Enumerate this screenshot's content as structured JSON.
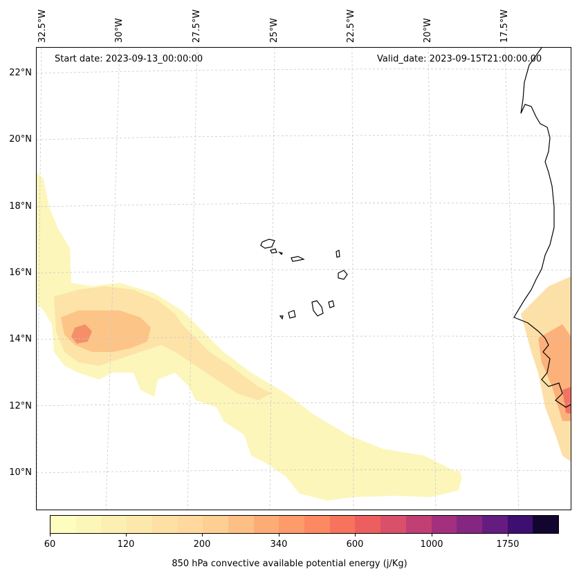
{
  "annotations": {
    "start_date": "Start date: 2023-09-13_00:00:00",
    "valid_date": "Valid_date: 2023-09-15T21:00:00.00"
  },
  "longitude_labels": [
    "32.5°W",
    "30°W",
    "27.5°W",
    "25°W",
    "22.5°W",
    "20°W",
    "17.5°W"
  ],
  "latitude_labels": [
    "22°N",
    "20°N",
    "18°N",
    "16°N",
    "14°N",
    "12°N",
    "10°N"
  ],
  "colorbar": {
    "title": "850 hPa convective available potential energy (j/Kg)",
    "tick_labels": [
      "60",
      "120",
      "200",
      "340",
      "600",
      "1000",
      "1750"
    ],
    "colors": [
      "#fcfdbf",
      "#fcf6b9",
      "#fcefb2",
      "#fde8ab",
      "#fee0a4",
      "#fed89d",
      "#fecf92",
      "#febf84",
      "#feac76",
      "#fd9b6a",
      "#fc8961",
      "#f7735c",
      "#ec5f5e",
      "#d9506a",
      "#c13f73",
      "#a3307e",
      "#852782",
      "#651c80",
      "#3d0f70",
      "#13062e"
    ]
  },
  "chart_data": {
    "type": "map",
    "title": "850 hPa convective available potential energy (j/Kg)",
    "variable": "CAPE at 850 hPa",
    "units": "j/Kg",
    "start_date": "2023-09-13_00:00:00",
    "valid_date": "2023-09-15T21:00:00.00",
    "lon_range": [
      -33,
      -15.5
    ],
    "lat_range": [
      9,
      22.8
    ],
    "color_levels": [
      60,
      120,
      200,
      340,
      600,
      1000,
      1750
    ],
    "features": [
      "Cabo Verde islands",
      "West African coastline (Mauritania, Senegal, Gambia, Guinea-Bissau)"
    ],
    "notes": "CAPE band extends from ~19N 33W southeast to ~10N 20W with maximum (~340-600) near 14N 32W; higher values along the African coast near 11.5-12N 16W"
  }
}
